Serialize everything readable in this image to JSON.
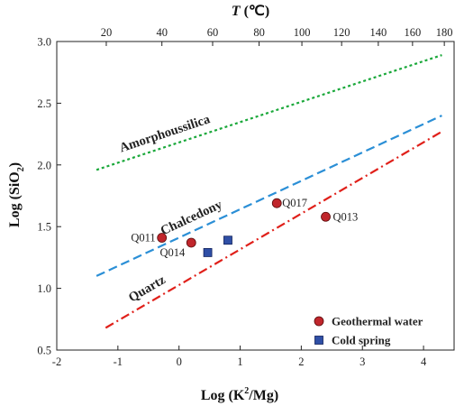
{
  "chart_data": {
    "type": "scatter",
    "xlabel_parts": {
      "main": "Log (K",
      "sup": "2",
      "rest": "/Mg)"
    },
    "ylabel_parts": {
      "main": "Log (SiO",
      "sub": "2",
      "rest": ")"
    },
    "top_label_parts": {
      "italic": "T",
      "rest": " (℃)"
    },
    "xlim": [
      -2,
      4.5
    ],
    "ylim": [
      0.5,
      3.0
    ],
    "x_ticks": [
      "-2",
      "-1",
      "0",
      "1",
      "2",
      "3",
      "4"
    ],
    "y_ticks": [
      "0.5",
      "1.0",
      "1.5",
      "2.0",
      "2.5",
      "3.0"
    ],
    "top_ticks": [
      {
        "label": "20",
        "x": -1.19
      },
      {
        "label": "40",
        "x": -0.28
      },
      {
        "label": "60",
        "x": 0.55
      },
      {
        "label": "80",
        "x": 1.31
      },
      {
        "label": "100",
        "x": 2.01
      },
      {
        "label": "120",
        "x": 2.66
      },
      {
        "label": "140",
        "x": 3.26
      },
      {
        "label": "160",
        "x": 3.82
      },
      {
        "label": "180",
        "x": 4.34
      }
    ],
    "curves": [
      {
        "name": "Amorphous silica",
        "label": "Amorphoussilica",
        "color": "#1aa83a",
        "dash": "3,3",
        "x": [
          -1.35,
          4.3
        ],
        "y": [
          1.96,
          2.89
        ]
      },
      {
        "name": "Chalcedony",
        "label": "Chalcedony",
        "color": "#2b8fd6",
        "dash": "10,5",
        "x": [
          -1.35,
          4.3
        ],
        "y": [
          1.1,
          2.4
        ]
      },
      {
        "name": "Quartz",
        "label": "Quartz",
        "color": "#e0201a",
        "dash": "10,4,2,4",
        "x": [
          -1.2,
          4.3
        ],
        "y": [
          0.68,
          2.27
        ]
      }
    ],
    "series": [
      {
        "name": "Geothermal water",
        "marker": "circle",
        "color": "#c0262c",
        "points": [
          {
            "id": "Q011",
            "x": -0.28,
            "y": 1.41
          },
          {
            "id": "Q014",
            "x": 0.2,
            "y": 1.37
          },
          {
            "id": "Q017",
            "x": 1.6,
            "y": 1.69
          },
          {
            "id": "Q013",
            "x": 2.4,
            "y": 1.58
          }
        ]
      },
      {
        "name": "Cold spring",
        "marker": "square",
        "color": "#2f4fa6",
        "points": [
          {
            "x": 0.47,
            "y": 1.29
          },
          {
            "x": 0.8,
            "y": 1.39
          }
        ]
      }
    ],
    "grid": false,
    "legend_position": "bottom-right"
  }
}
